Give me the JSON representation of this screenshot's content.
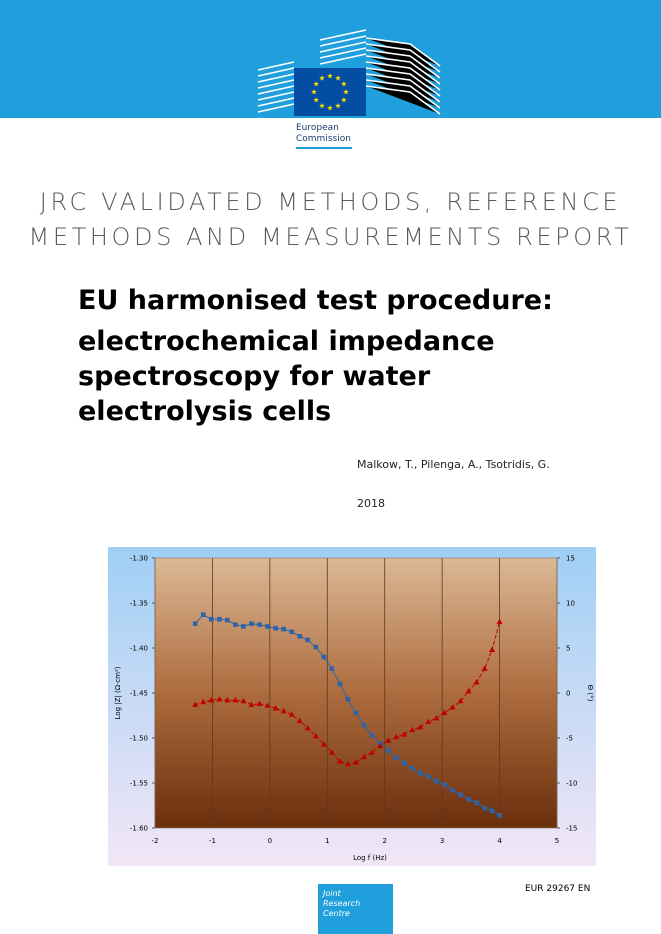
{
  "header": {
    "logo_text": [
      "European",
      "Commission"
    ]
  },
  "series_title": [
    "JRC VALIDATED METHODS, REFERENCE",
    "METHODS AND MEASUREMENTS REPORT"
  ],
  "title": [
    "EU harmonised test procedure:",
    "electrochemical impedance",
    "spectroscopy for water",
    "electrolysis cells"
  ],
  "authors": "Malkow, T., Pilenga, A., Tsotridis, G.",
  "year": "2018",
  "chart_data": {
    "type": "line",
    "x_label": "Log f (Hz)",
    "y_label": "Log |Z| (Ω·cm²)",
    "y2_label": "Θ (°)",
    "x": [
      -1.3,
      -1.16,
      -1.02,
      -0.88,
      -0.74,
      -0.6,
      -0.46,
      -0.32,
      -0.18,
      -0.04,
      0.1,
      0.24,
      0.38,
      0.52,
      0.66,
      0.8,
      0.94,
      1.08,
      1.22,
      1.36,
      1.5,
      1.64,
      1.78,
      1.92,
      2.06,
      2.2,
      2.34,
      2.48,
      2.62,
      2.76,
      2.9,
      3.04,
      3.18,
      3.32,
      3.46,
      3.6,
      3.74,
      3.87,
      4.0
    ],
    "series": [
      {
        "color": "#2e63a8",
        "marker": "square",
        "dash": false,
        "values": [
          -1.373,
          -1.363,
          -1.368,
          -1.368,
          -1.369,
          -1.374,
          -1.376,
          -1.373,
          -1.374,
          -1.376,
          -1.378,
          -1.379,
          -1.382,
          -1.387,
          -1.391,
          -1.399,
          -1.41,
          -1.423,
          -1.44,
          -1.457,
          -1.472,
          -1.486,
          -1.497,
          -1.506,
          -1.514,
          -1.522,
          -1.528,
          -1.534,
          -1.539,
          -1.543,
          -1.548,
          -1.552,
          -1.558,
          -1.563,
          -1.568,
          -1.572,
          -1.578,
          -1.581,
          -1.586
        ]
      },
      {
        "color": "#c00000",
        "marker": "triangle",
        "dash": true,
        "axis": "y2",
        "values": [
          -1.3,
          -1.0,
          -0.8,
          -0.7,
          -0.8,
          -0.8,
          -0.9,
          -1.3,
          -1.2,
          -1.4,
          -1.7,
          -2.0,
          -2.4,
          -3.1,
          -3.9,
          -4.8,
          -5.7,
          -6.6,
          -7.6,
          -7.9,
          -7.7,
          -7.1,
          -6.6,
          -5.9,
          -5.3,
          -4.9,
          -4.6,
          -4.1,
          -3.8,
          -3.2,
          -2.8,
          -2.2,
          -1.6,
          -0.9,
          0.2,
          1.2,
          2.7,
          4.8,
          7.9
        ]
      }
    ],
    "xlim": [
      -2,
      5
    ],
    "xticks": [
      -2,
      -1,
      0,
      1,
      2,
      3,
      4,
      5
    ],
    "ylim": [
      -1.6,
      -1.3
    ],
    "yticks": [
      {
        "value": -1.6,
        "label": "-1.60"
      },
      {
        "value": -1.55,
        "label": "-1.55"
      },
      {
        "value": -1.5,
        "label": "-1.50"
      },
      {
        "value": -1.45,
        "label": "-1.45"
      },
      {
        "value": -1.4,
        "label": "-1.40"
      },
      {
        "value": -1.35,
        "label": "-1.35"
      },
      {
        "value": -1.3,
        "label": "-1.30"
      }
    ],
    "y2lim": [
      -15,
      15
    ],
    "y2ticks": [
      -15,
      -10,
      -5,
      0,
      5,
      10,
      15
    ],
    "grid": "x"
  },
  "footer": {
    "jrc_logo": [
      "Joint",
      "Research",
      "Centre"
    ],
    "report_number": "EUR 29267 EN"
  }
}
